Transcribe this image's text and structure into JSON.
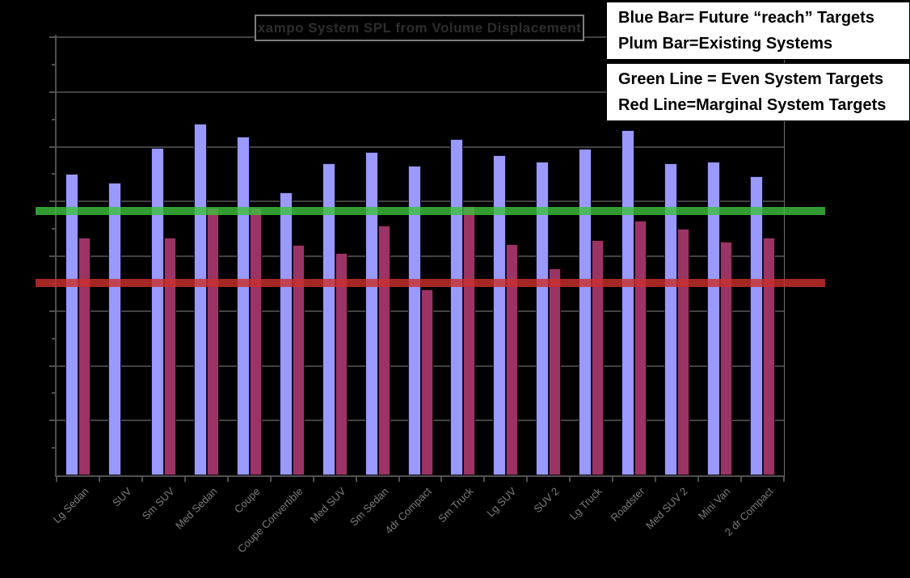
{
  "colors": {
    "background": "#000000",
    "bar_blue": "#9999FE",
    "bar_plum": "#9B3464",
    "line_green": "#3DBE3D",
    "line_red": "#C9302C",
    "gridline": "#424242",
    "axis_label_gray": "#7d7d7d",
    "title_text_gray": "#2e2e2e",
    "legend_background": "#FFFFFF"
  },
  "legend_boxes": [
    {
      "line1": "Blue Bar= Future “reach” Targets",
      "line2": "Plum Bar=Existing Systems"
    },
    {
      "line1": "Green Line = Even System Targets",
      "line2": "Red Line=Marginal System Targets"
    }
  ],
  "chart_data": {
    "type": "bar",
    "title": "xampo System SPL from Volume Displacement",
    "xlabel": "",
    "ylabel": "",
    "y_axis_tick_labels_visible": false,
    "grid": true,
    "ylim": [
      0,
      100.5
    ],
    "gridline_interval": 12.5,
    "value_scale_note": "y-axis numeric labels are not visible in the image; values are on a 0-100 relative scale where 100 = top gridline and gridlines fall every 12.5",
    "categories": [
      "Lg Sedan",
      "SUV",
      "Sm SUV",
      "Med Sedan",
      "Coupe",
      "Coupe Convertible",
      "Med SUV",
      "Sm Sedan",
      "4dr Compact",
      "Sm Truck",
      "Lg SUV",
      "SUV 2",
      "Lg Truck",
      "Roadster",
      "Med SUV 2",
      "Mini Van",
      "2 dr Compact"
    ],
    "series": [
      {
        "name": "Future \"reach\" Targets (blue bars)",
        "color": "#9999FE",
        "values": [
          68.8,
          66.8,
          74.7,
          80.3,
          77.3,
          64.6,
          71.2,
          73.8,
          70.7,
          76.8,
          73.1,
          71.6,
          74.5,
          78.8,
          71.2,
          71.6,
          68.3
        ]
      },
      {
        "name": "Existing Systems (plum bars)",
        "color": "#9B3464",
        "values": [
          54.2,
          0,
          54.2,
          61.1,
          61.1,
          52.6,
          50.7,
          57.0,
          42.4,
          61.4,
          52.8,
          47.2,
          53.7,
          58.1,
          56.3,
          53.3,
          54.2
        ]
      }
    ],
    "series_note": "SUV category shows no plum bar (existing system value not plotted)",
    "reference_lines": [
      {
        "name": "Even System Targets",
        "color": "#3DBE3D",
        "value": 60.3
      },
      {
        "name": "Marginal System Targets",
        "color": "#C9302C",
        "value": 43.9
      }
    ],
    "legend_position": "top-right text boxes"
  }
}
